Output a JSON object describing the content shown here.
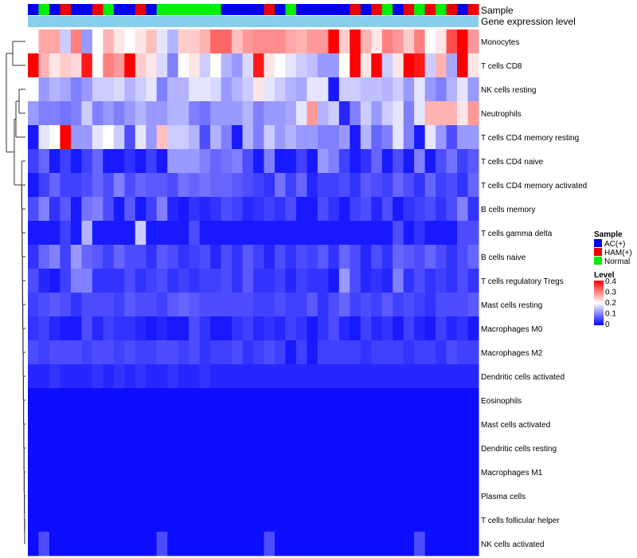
{
  "chart_data": {
    "type": "heatmap",
    "title": "",
    "annotation_labels": {
      "sample": "Sample",
      "gene": "Gene expression level"
    },
    "sample_legend": {
      "title": "Sample",
      "items": [
        {
          "label": "AC(+)",
          "color": "#0000ee"
        },
        {
          "label": "HAM(+)",
          "color": "#ee0000"
        },
        {
          "label": "Normal",
          "color": "#00ee00"
        }
      ]
    },
    "level_legend": {
      "title": "Level",
      "ticks": [
        "0.4",
        "0.3",
        "0.2",
        "0.1",
        "0"
      ],
      "range": [
        0,
        0.4
      ],
      "low_color": "#0000ff",
      "mid_color": "#ffffff",
      "high_color": "#ff0000"
    },
    "gene_bar_color": "#87ceeb",
    "sample_groups": [
      0,
      2,
      0,
      1,
      0,
      0,
      1,
      2,
      0,
      0,
      1,
      0,
      2,
      2,
      2,
      2,
      2,
      2,
      0,
      0,
      0,
      0,
      1,
      0,
      2,
      0,
      0,
      0,
      0,
      0,
      1,
      0,
      1,
      2,
      0,
      1,
      2,
      1,
      2,
      1,
      0,
      1
    ],
    "rows": [
      "Monocytes",
      "T cells CD8",
      "NK cells resting",
      "Neutrophils",
      "T cells CD4 memory resting",
      "T cells CD4 naive",
      "T cells CD4 memory activated",
      "B cells memory",
      "T cells gamma delta",
      "B cells naive",
      "T cells regulatory  Tregs",
      "Mast cells resting",
      "Macrophages M0",
      "Macrophages M2",
      "Dendritic cells activated",
      "Eosinophils",
      "Mast cells activated",
      "Dendritic cells resting",
      "Macrophages M1",
      "Plasma cells",
      "T cells follicular helper",
      "NK cells activated"
    ],
    "values": [
      [
        0.2,
        0.27,
        0.27,
        0.16,
        0.3,
        0.12,
        0.2,
        0.26,
        0.22,
        0.2,
        0.22,
        0.25,
        0.18,
        0.14,
        0.24,
        0.24,
        0.26,
        0.32,
        0.32,
        0.25,
        0.28,
        0.29,
        0.29,
        0.29,
        0.27,
        0.26,
        0.28,
        0.28,
        0.4,
        0.24,
        0.4,
        0.26,
        0.22,
        0.3,
        0.28,
        0.24,
        0.3,
        0.2,
        0.22,
        0.34,
        0.4,
        0.28
      ],
      [
        0.4,
        0.26,
        0.22,
        0.24,
        0.23,
        0.38,
        0.2,
        0.3,
        0.28,
        0.4,
        0.24,
        0.22,
        0.17,
        0.1,
        0.2,
        0.22,
        0.16,
        0.2,
        0.14,
        0.12,
        0.17,
        0.38,
        0.22,
        0.2,
        0.18,
        0.16,
        0.15,
        0.12,
        0.12,
        0.2,
        0.4,
        0.22,
        0.4,
        0.16,
        0.22,
        0.4,
        0.38,
        0.16,
        0.26,
        0.13,
        0.4,
        0.22
      ],
      [
        0.2,
        0.12,
        0.14,
        0.13,
        0.1,
        0.12,
        0.16,
        0.16,
        0.17,
        0.14,
        0.16,
        0.18,
        0.1,
        0.14,
        0.14,
        0.18,
        0.18,
        0.17,
        0.12,
        0.14,
        0.16,
        0.22,
        0.18,
        0.16,
        0.14,
        0.13,
        0.18,
        0.18,
        0.02,
        0.16,
        0.16,
        0.15,
        0.15,
        0.14,
        0.16,
        0.12,
        0.18,
        0.12,
        0.1,
        0.14,
        0.18,
        0.12
      ],
      [
        0.12,
        0.1,
        0.1,
        0.09,
        0.1,
        0.16,
        0.1,
        0.12,
        0.1,
        0.12,
        0.14,
        0.12,
        0.12,
        0.14,
        0.14,
        0.1,
        0.09,
        0.12,
        0.12,
        0.12,
        0.14,
        0.1,
        0.12,
        0.12,
        0.13,
        0.18,
        0.28,
        0.14,
        0.16,
        0.03,
        0.1,
        0.16,
        0.12,
        0.16,
        0.18,
        0.1,
        0.18,
        0.26,
        0.26,
        0.26,
        0.22,
        0.28
      ],
      [
        0.02,
        0.18,
        0.2,
        0.4,
        0.12,
        0.12,
        0.18,
        0.2,
        0.16,
        0.06,
        0.18,
        0.12,
        0.25,
        0.16,
        0.16,
        0.14,
        0.06,
        0.14,
        0.1,
        0.02,
        0.14,
        0.1,
        0.16,
        0.12,
        0.14,
        0.12,
        0.12,
        0.1,
        0.1,
        0.12,
        0.02,
        0.14,
        0.08,
        0.1,
        0.18,
        0.1,
        0.02,
        0.18,
        0.12,
        0.06,
        0.12,
        0.12
      ],
      [
        0.05,
        0.08,
        0.02,
        0.05,
        0.02,
        0.05,
        0.08,
        0.02,
        0.02,
        0.04,
        0.02,
        0.05,
        0.02,
        0.12,
        0.12,
        0.12,
        0.1,
        0.08,
        0.09,
        0.1,
        0.06,
        0.02,
        0.1,
        0.02,
        0.02,
        0.05,
        0.02,
        0.12,
        0.1,
        0.05,
        0.02,
        0.04,
        0.08,
        0.02,
        0.06,
        0.02,
        0.1,
        0.02,
        0.06,
        0.09,
        0.05,
        0.07
      ],
      [
        0.02,
        0.05,
        0.08,
        0.05,
        0.05,
        0.06,
        0.08,
        0.06,
        0.1,
        0.06,
        0.08,
        0.07,
        0.07,
        0.06,
        0.09,
        0.08,
        0.09,
        0.08,
        0.08,
        0.07,
        0.06,
        0.05,
        0.04,
        0.09,
        0.05,
        0.08,
        0.03,
        0.05,
        0.05,
        0.06,
        0.04,
        0.07,
        0.06,
        0.05,
        0.08,
        0.06,
        0.04,
        0.08,
        0.05,
        0.06,
        0.04,
        0.08
      ],
      [
        0.06,
        0.1,
        0.04,
        0.07,
        0.02,
        0.09,
        0.1,
        0.06,
        0.02,
        0.07,
        0.02,
        0.05,
        0.1,
        0.03,
        0.02,
        0.04,
        0.03,
        0.04,
        0.06,
        0.05,
        0.03,
        0.04,
        0.05,
        0.04,
        0.06,
        0.02,
        0.02,
        0.06,
        0.04,
        0.02,
        0.05,
        0.06,
        0.03,
        0.06,
        0.02,
        0.04,
        0.05,
        0.06,
        0.04,
        0.06,
        0.1,
        0.04
      ],
      [
        0.02,
        0.02,
        0.02,
        0.05,
        0.02,
        0.14,
        0.02,
        0.02,
        0.02,
        0.02,
        0.16,
        0.02,
        0.02,
        0.02,
        0.02,
        0.06,
        0.02,
        0.02,
        0.02,
        0.02,
        0.02,
        0.02,
        0.02,
        0.02,
        0.02,
        0.02,
        0.02,
        0.02,
        0.02,
        0.02,
        0.02,
        0.02,
        0.02,
        0.02,
        0.06,
        0.02,
        0.04,
        0.02,
        0.02,
        0.02,
        0.06,
        0.06
      ],
      [
        0.04,
        0.08,
        0.1,
        0.05,
        0.12,
        0.08,
        0.07,
        0.05,
        0.08,
        0.06,
        0.06,
        0.04,
        0.07,
        0.06,
        0.04,
        0.05,
        0.06,
        0.03,
        0.06,
        0.04,
        0.07,
        0.05,
        0.03,
        0.06,
        0.04,
        0.06,
        0.05,
        0.07,
        0.04,
        0.08,
        0.06,
        0.03,
        0.06,
        0.04,
        0.08,
        0.07,
        0.06,
        0.08,
        0.06,
        0.04,
        0.06,
        0.08
      ],
      [
        0.06,
        0.03,
        0.02,
        0.05,
        0.1,
        0.1,
        0.04,
        0.04,
        0.04,
        0.06,
        0.04,
        0.05,
        0.06,
        0.04,
        0.05,
        0.04,
        0.05,
        0.05,
        0.06,
        0.04,
        0.07,
        0.04,
        0.04,
        0.05,
        0.03,
        0.05,
        0.04,
        0.04,
        0.02,
        0.12,
        0.06,
        0.03,
        0.04,
        0.03,
        0.1,
        0.04,
        0.06,
        0.04,
        0.05,
        0.04,
        0.06,
        0.04
      ],
      [
        0.05,
        0.06,
        0.07,
        0.06,
        0.04,
        0.06,
        0.06,
        0.06,
        0.05,
        0.07,
        0.06,
        0.06,
        0.05,
        0.07,
        0.08,
        0.07,
        0.06,
        0.06,
        0.06,
        0.06,
        0.06,
        0.05,
        0.05,
        0.06,
        0.05,
        0.05,
        0.07,
        0.04,
        0.06,
        0.08,
        0.05,
        0.06,
        0.05,
        0.07,
        0.05,
        0.06,
        0.05,
        0.04,
        0.06,
        0.06,
        0.06,
        0.07
      ],
      [
        0.04,
        0.05,
        0.03,
        0.02,
        0.02,
        0.06,
        0.03,
        0.05,
        0.04,
        0.04,
        0.03,
        0.02,
        0.03,
        0.02,
        0.02,
        0.06,
        0.04,
        0.02,
        0.02,
        0.04,
        0.05,
        0.03,
        0.04,
        0.03,
        0.05,
        0.04,
        0.02,
        0.04,
        0.06,
        0.03,
        0.02,
        0.05,
        0.03,
        0.04,
        0.02,
        0.05,
        0.03,
        0.02,
        0.05,
        0.03,
        0.04,
        0.02
      ],
      [
        0.06,
        0.05,
        0.06,
        0.06,
        0.06,
        0.05,
        0.06,
        0.06,
        0.05,
        0.06,
        0.05,
        0.05,
        0.06,
        0.06,
        0.05,
        0.06,
        0.04,
        0.05,
        0.05,
        0.06,
        0.04,
        0.05,
        0.06,
        0.05,
        0.02,
        0.05,
        0.02,
        0.05,
        0.05,
        0.05,
        0.05,
        0.04,
        0.05,
        0.05,
        0.05,
        0.04,
        0.05,
        0.05,
        0.04,
        0.06,
        0.05,
        0.05
      ],
      [
        0.03,
        0.03,
        0.04,
        0.03,
        0.03,
        0.03,
        0.04,
        0.03,
        0.04,
        0.03,
        0.04,
        0.03,
        0.03,
        0.04,
        0.03,
        0.03,
        0.04,
        0.03,
        0.03,
        0.03,
        0.03,
        0.03,
        0.03,
        0.03,
        0.03,
        0.03,
        0.03,
        0.03,
        0.03,
        0.03,
        0.03,
        0.03,
        0.03,
        0.03,
        0.03,
        0.03,
        0.03,
        0.03,
        0.03,
        0.03,
        0.03,
        0.03
      ],
      [
        0.01,
        0.01,
        0.01,
        0.01,
        0.01,
        0.01,
        0.01,
        0.01,
        0.01,
        0.01,
        0.01,
        0.01,
        0.01,
        0.01,
        0.01,
        0.01,
        0.01,
        0.01,
        0.01,
        0.01,
        0.01,
        0.01,
        0.01,
        0.01,
        0.01,
        0.01,
        0.01,
        0.01,
        0.01,
        0.01,
        0.01,
        0.01,
        0.01,
        0.01,
        0.01,
        0.01,
        0.01,
        0.01,
        0.01,
        0.01,
        0.01,
        0.01
      ],
      [
        0.01,
        0.01,
        0.01,
        0.01,
        0.01,
        0.01,
        0.01,
        0.01,
        0.01,
        0.01,
        0.01,
        0.01,
        0.01,
        0.01,
        0.01,
        0.01,
        0.01,
        0.01,
        0.01,
        0.01,
        0.01,
        0.01,
        0.01,
        0.01,
        0.01,
        0.01,
        0.01,
        0.01,
        0.01,
        0.01,
        0.01,
        0.01,
        0.01,
        0.01,
        0.01,
        0.01,
        0.01,
        0.01,
        0.01,
        0.01,
        0.01,
        0.01
      ],
      [
        0.01,
        0.01,
        0.01,
        0.01,
        0.01,
        0.01,
        0.01,
        0.01,
        0.01,
        0.01,
        0.01,
        0.01,
        0.01,
        0.01,
        0.01,
        0.01,
        0.01,
        0.01,
        0.01,
        0.01,
        0.01,
        0.01,
        0.01,
        0.01,
        0.01,
        0.01,
        0.01,
        0.01,
        0.01,
        0.01,
        0.01,
        0.01,
        0.01,
        0.01,
        0.01,
        0.01,
        0.01,
        0.01,
        0.01,
        0.01,
        0.01,
        0.01
      ],
      [
        0.01,
        0.01,
        0.01,
        0.01,
        0.01,
        0.01,
        0.01,
        0.01,
        0.01,
        0.01,
        0.01,
        0.01,
        0.01,
        0.01,
        0.01,
        0.01,
        0.01,
        0.01,
        0.01,
        0.01,
        0.01,
        0.01,
        0.01,
        0.01,
        0.01,
        0.01,
        0.01,
        0.01,
        0.01,
        0.01,
        0.01,
        0.01,
        0.01,
        0.01,
        0.01,
        0.01,
        0.01,
        0.01,
        0.01,
        0.01,
        0.01,
        0.01
      ],
      [
        0.01,
        0.01,
        0.01,
        0.01,
        0.01,
        0.01,
        0.01,
        0.01,
        0.01,
        0.01,
        0.01,
        0.01,
        0.01,
        0.01,
        0.01,
        0.01,
        0.01,
        0.01,
        0.01,
        0.01,
        0.01,
        0.01,
        0.01,
        0.01,
        0.01,
        0.01,
        0.01,
        0.01,
        0.01,
        0.01,
        0.01,
        0.01,
        0.01,
        0.01,
        0.01,
        0.01,
        0.01,
        0.01,
        0.01,
        0.01,
        0.01,
        0.01
      ],
      [
        0.01,
        0.01,
        0.01,
        0.01,
        0.01,
        0.01,
        0.01,
        0.01,
        0.01,
        0.01,
        0.01,
        0.01,
        0.01,
        0.01,
        0.01,
        0.01,
        0.01,
        0.01,
        0.01,
        0.01,
        0.01,
        0.01,
        0.01,
        0.01,
        0.01,
        0.01,
        0.01,
        0.01,
        0.01,
        0.01,
        0.01,
        0.01,
        0.01,
        0.01,
        0.01,
        0.01,
        0.01,
        0.01,
        0.01,
        0.01,
        0.01,
        0.01
      ],
      [
        0.01,
        0.06,
        0.01,
        0.01,
        0.01,
        0.01,
        0.01,
        0.01,
        0.01,
        0.01,
        0.01,
        0.01,
        0.06,
        0.01,
        0.01,
        0.01,
        0.01,
        0.01,
        0.01,
        0.01,
        0.01,
        0.01,
        0.06,
        0.01,
        0.01,
        0.01,
        0.01,
        0.01,
        0.01,
        0.01,
        0.01,
        0.01,
        0.01,
        0.01,
        0.01,
        0.01,
        0.06,
        0.01,
        0.01,
        0.01,
        0.01,
        0.01
      ]
    ]
  }
}
